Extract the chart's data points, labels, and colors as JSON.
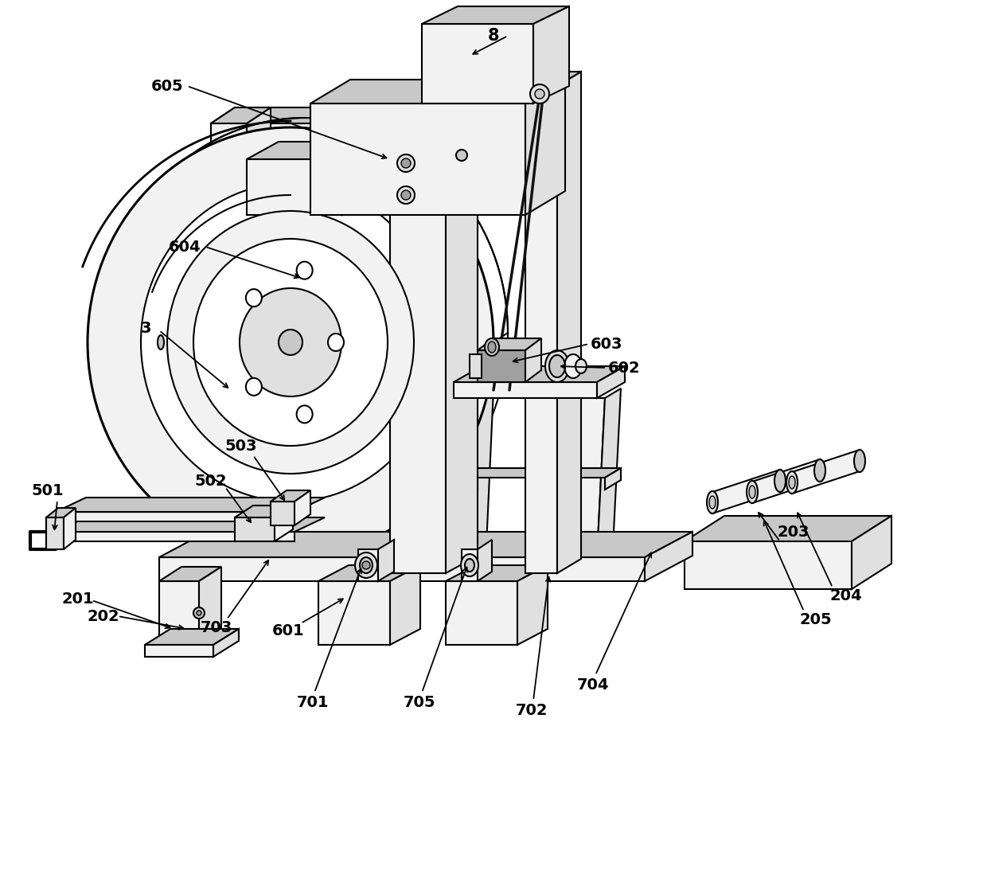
{
  "bg_color": "#ffffff",
  "lc": "#000000",
  "lw": 1.5,
  "tlw": 2.2,
  "fc_white": "#ffffff",
  "fc_light": "#f2f2f2",
  "fc_mid": "#e0e0e0",
  "fc_dark": "#c8c8c8",
  "fc_vdark": "#a0a0a0",
  "labels": [
    "8",
    "605",
    "604",
    "3",
    "603",
    "602",
    "503",
    "502",
    "501",
    "201",
    "202",
    "703",
    "601",
    "701",
    "705",
    "702",
    "704",
    "203",
    "204",
    "205"
  ]
}
